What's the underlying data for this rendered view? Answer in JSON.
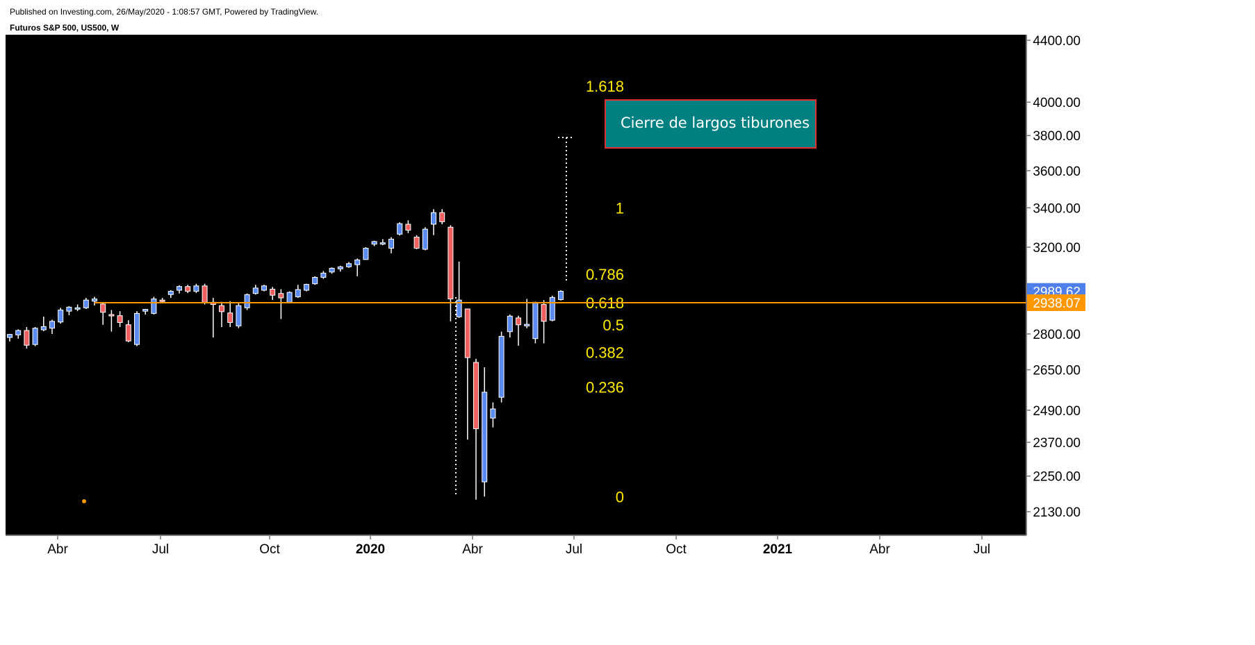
{
  "header": {
    "published": "Published on Investing.com, 26/May/2020 - 1:08:57 GMT, Powered by TradingView.",
    "title": "Futuros S&P 500, US500, W"
  },
  "chart_data": {
    "type": "candlestick",
    "title": "Futuros S&P 500, US500, W",
    "y_scale": "log",
    "ylim": [
      2030,
      4450
    ],
    "yticks": [
      "4400.00",
      "4000.00",
      "3800.00",
      "3600.00",
      "3400.00",
      "3200.00",
      "2800.00",
      "2650.00",
      "2490.00",
      "2370.00",
      "2250.00",
      "2130.00"
    ],
    "x_labels": [
      "Abr",
      "Jul",
      "Oct",
      "2020",
      "Abr",
      "Jul",
      "Oct",
      "2021",
      "Abr",
      "Jul"
    ],
    "bold_x_labels": [
      "2020",
      "2021"
    ],
    "colors": {
      "up": "#5b8bf0",
      "down": "#f06060",
      "wick": "#ffffff",
      "background": "#000000",
      "level_line": "#ff9800",
      "fib_text": "#ffeb00",
      "last_price_tag": "#4f7fe8",
      "level_tag": "#ff9800",
      "annotation_fill": "#008080",
      "annotation_border": "#e03030"
    },
    "candles": [
      {
        "o": 2785,
        "h": 2800,
        "l": 2768,
        "c": 2798
      },
      {
        "o": 2796,
        "h": 2820,
        "l": 2780,
        "c": 2815
      },
      {
        "o": 2815,
        "h": 2830,
        "l": 2738,
        "c": 2752
      },
      {
        "o": 2755,
        "h": 2830,
        "l": 2748,
        "c": 2825
      },
      {
        "o": 2818,
        "h": 2876,
        "l": 2812,
        "c": 2832
      },
      {
        "o": 2825,
        "h": 2862,
        "l": 2800,
        "c": 2855
      },
      {
        "o": 2852,
        "h": 2915,
        "l": 2845,
        "c": 2905
      },
      {
        "o": 2900,
        "h": 2922,
        "l": 2882,
        "c": 2918
      },
      {
        "o": 2912,
        "h": 2930,
        "l": 2900,
        "c": 2915
      },
      {
        "o": 2915,
        "h": 2960,
        "l": 2910,
        "c": 2950
      },
      {
        "o": 2945,
        "h": 2965,
        "l": 2925,
        "c": 2955
      },
      {
        "o": 2932,
        "h": 2935,
        "l": 2840,
        "c": 2895
      },
      {
        "o": 2885,
        "h": 2905,
        "l": 2810,
        "c": 2880
      },
      {
        "o": 2880,
        "h": 2900,
        "l": 2830,
        "c": 2850
      },
      {
        "o": 2840,
        "h": 2860,
        "l": 2765,
        "c": 2770
      },
      {
        "o": 2755,
        "h": 2900,
        "l": 2748,
        "c": 2890
      },
      {
        "o": 2900,
        "h": 2910,
        "l": 2885,
        "c": 2908
      },
      {
        "o": 2890,
        "h": 2965,
        "l": 2885,
        "c": 2955
      },
      {
        "o": 2950,
        "h": 2960,
        "l": 2938,
        "c": 2945
      },
      {
        "o": 2975,
        "h": 2995,
        "l": 2960,
        "c": 2990
      },
      {
        "o": 2995,
        "h": 3018,
        "l": 2980,
        "c": 3012
      },
      {
        "o": 3012,
        "h": 3020,
        "l": 2982,
        "c": 2990
      },
      {
        "o": 2990,
        "h": 3025,
        "l": 2982,
        "c": 3015
      },
      {
        "o": 3015,
        "h": 3025,
        "l": 2930,
        "c": 2940
      },
      {
        "o": 2940,
        "h": 2960,
        "l": 2785,
        "c": 2930
      },
      {
        "o": 2925,
        "h": 2942,
        "l": 2830,
        "c": 2898
      },
      {
        "o": 2892,
        "h": 2945,
        "l": 2830,
        "c": 2850
      },
      {
        "o": 2835,
        "h": 2935,
        "l": 2825,
        "c": 2925
      },
      {
        "o": 2915,
        "h": 2980,
        "l": 2905,
        "c": 2975
      },
      {
        "o": 2980,
        "h": 3020,
        "l": 2975,
        "c": 3005
      },
      {
        "o": 2995,
        "h": 3020,
        "l": 2990,
        "c": 3015
      },
      {
        "o": 3000,
        "h": 3010,
        "l": 2950,
        "c": 2972
      },
      {
        "o": 2980,
        "h": 3000,
        "l": 2865,
        "c": 2960
      },
      {
        "o": 2940,
        "h": 2990,
        "l": 2935,
        "c": 2985
      },
      {
        "o": 2965,
        "h": 3020,
        "l": 2960,
        "c": 2998
      },
      {
        "o": 2995,
        "h": 3025,
        "l": 2990,
        "c": 3022
      },
      {
        "o": 3025,
        "h": 3060,
        "l": 3020,
        "c": 3055
      },
      {
        "o": 3055,
        "h": 3085,
        "l": 3048,
        "c": 3075
      },
      {
        "o": 3080,
        "h": 3102,
        "l": 3072,
        "c": 3098
      },
      {
        "o": 3095,
        "h": 3110,
        "l": 3082,
        "c": 3105
      },
      {
        "o": 3105,
        "h": 3128,
        "l": 3100,
        "c": 3120
      },
      {
        "o": 3115,
        "h": 3145,
        "l": 3060,
        "c": 3138
      },
      {
        "o": 3140,
        "h": 3200,
        "l": 3138,
        "c": 3195
      },
      {
        "o": 3215,
        "h": 3232,
        "l": 3205,
        "c": 3228
      },
      {
        "o": 3220,
        "h": 3240,
        "l": 3210,
        "c": 3222
      },
      {
        "o": 3195,
        "h": 3250,
        "l": 3170,
        "c": 3240
      },
      {
        "o": 3265,
        "h": 3325,
        "l": 3258,
        "c": 3318
      },
      {
        "o": 3315,
        "h": 3335,
        "l": 3270,
        "c": 3285
      },
      {
        "o": 3250,
        "h": 3260,
        "l": 3190,
        "c": 3195
      },
      {
        "o": 3190,
        "h": 3300,
        "l": 3185,
        "c": 3290
      },
      {
        "o": 3315,
        "h": 3393,
        "l": 3260,
        "c": 3375
      },
      {
        "o": 3375,
        "h": 3393,
        "l": 3315,
        "c": 3328
      },
      {
        "o": 3300,
        "h": 3310,
        "l": 2855,
        "c": 2955
      },
      {
        "o": 2875,
        "h": 3130,
        "l": 2870,
        "c": 2950
      },
      {
        "o": 2910,
        "h": 2910,
        "l": 2380,
        "c": 2700
      },
      {
        "o": 2680,
        "h": 2695,
        "l": 2170,
        "c": 2420
      },
      {
        "o": 2230,
        "h": 2660,
        "l": 2180,
        "c": 2560
      },
      {
        "o": 2460,
        "h": 2520,
        "l": 2425,
        "c": 2495
      },
      {
        "o": 2540,
        "h": 2810,
        "l": 2520,
        "c": 2790
      },
      {
        "o": 2810,
        "h": 2885,
        "l": 2785,
        "c": 2878
      },
      {
        "o": 2870,
        "h": 2880,
        "l": 2750,
        "c": 2840
      },
      {
        "o": 2835,
        "h": 2955,
        "l": 2825,
        "c": 2842
      },
      {
        "o": 2780,
        "h": 2942,
        "l": 2760,
        "c": 2940
      },
      {
        "o": 2930,
        "h": 2950,
        "l": 2760,
        "c": 2855
      },
      {
        "o": 2860,
        "h": 2970,
        "l": 2855,
        "c": 2962
      },
      {
        "o": 2952,
        "h": 2995,
        "l": 2948,
        "c": 2990
      }
    ],
    "fib_levels": [
      {
        "label": "1.618",
        "value": 4100
      },
      {
        "label": "1",
        "value": 3400
      },
      {
        "label": "0.786",
        "value": 3070
      },
      {
        "label": "0.618",
        "value": 2938
      },
      {
        "label": "0.5",
        "value": 2840
      },
      {
        "label": "0.382",
        "value": 2722
      },
      {
        "label": "0.236",
        "value": 2580
      },
      {
        "label": "0",
        "value": 2180
      }
    ],
    "horizontal_level": 2938.07,
    "last_price": "2989.62",
    "level_price": "2938.07",
    "annotation": "Cierre de largos tiburones"
  }
}
